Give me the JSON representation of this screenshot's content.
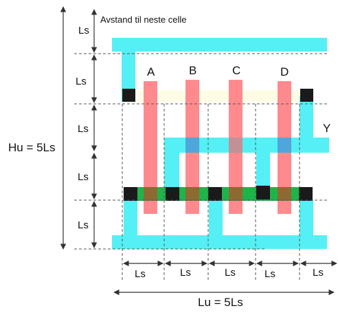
{
  "annotation": "Avstand til neste celle",
  "ls": "Ls",
  "hu_label": "Hu = 5Ls",
  "lu_label": "Lu = 5Ls",
  "inputs": [
    "A",
    "B",
    "C",
    "D"
  ],
  "output": "Y",
  "colors": {
    "metal": "#55F0F5",
    "poly": "#FF8A8E",
    "contact": "#1A1A1A",
    "diffusion": "#1DB54A",
    "nwell_tint": "#FFFCE6",
    "overlap_blue": "#4FA6DA",
    "overlap_pink": "#C49098",
    "overlap_brown": "#8E6A33"
  }
}
